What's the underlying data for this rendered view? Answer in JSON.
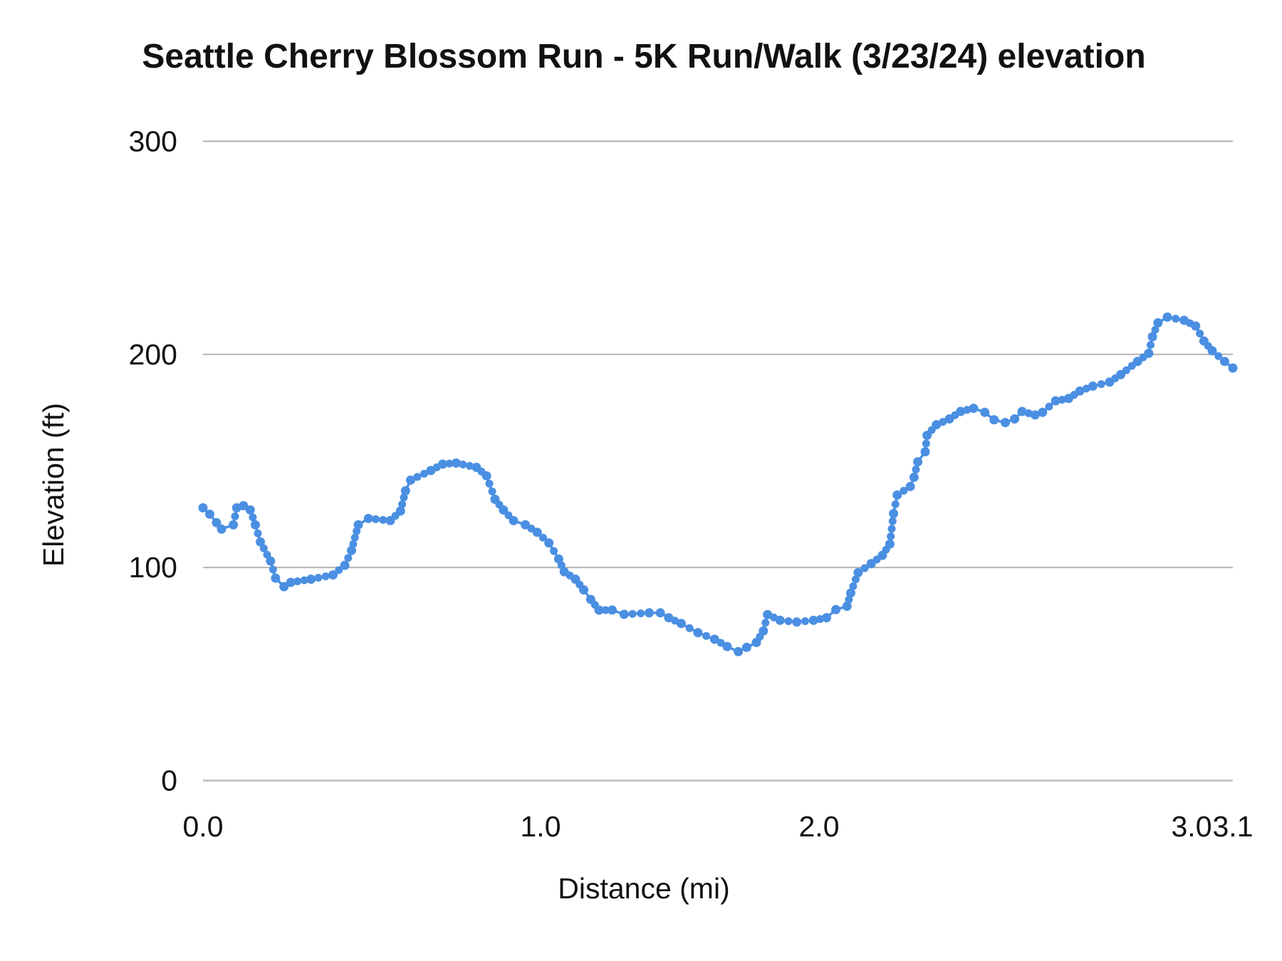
{
  "chart_data": {
    "type": "line",
    "title": "Seattle Cherry Blossom Run - 5K Run/Walk (3/23/24) elevation",
    "xlabel": "Distance (mi)",
    "ylabel": "Elevation (ft)",
    "ylim": [
      0,
      300
    ],
    "y_ticks": [
      "0",
      "100",
      "200",
      "300"
    ],
    "x_ticks": [
      "0.0",
      "1.0",
      "2.0",
      "3.0",
      "3.1"
    ],
    "x_tick_values": [
      0,
      1,
      2,
      3,
      3.1
    ],
    "grid": "horizontal",
    "markers": true,
    "line_color": "#4a8fe2",
    "x": [
      0,
      0.02,
      0.04,
      0.055,
      0.09,
      0.1,
      0.12,
      0.14,
      0.155,
      0.17,
      0.2,
      0.215,
      0.24,
      0.26,
      0.32,
      0.385,
      0.42,
      0.44,
      0.46,
      0.49,
      0.555,
      0.585,
      0.6,
      0.615,
      0.675,
      0.71,
      0.75,
      0.81,
      0.84,
      0.865,
      0.89,
      0.92,
      0.955,
      0.99,
      1.03,
      1.065,
      1.085,
      1.125,
      1.155,
      1.18,
      1.21,
      1.257,
      1.3,
      1.39,
      1.43,
      1.46,
      1.505,
      1.565,
      1.625,
      1.67,
      1.71,
      1.74,
      1.775,
      1.8,
      1.815,
      1.86,
      1.92,
      1.98,
      2.02,
      2.045,
      2.075,
      2.085,
      2.105,
      2.14,
      2.17,
      2.19,
      2.2,
      2.21,
      2.245,
      2.255,
      2.265,
      2.285,
      2.29,
      2.315,
      2.35,
      2.38,
      2.415,
      2.445,
      2.47,
      2.5,
      2.525,
      2.545,
      2.58,
      2.6,
      2.635,
      2.67,
      2.7,
      2.735,
      2.78,
      2.81,
      2.855,
      2.885,
      2.895,
      2.91,
      2.935,
      2.98,
      3.01,
      3.03,
      3.05,
      3.08,
      3.1
    ],
    "y": [
      128,
      125,
      121,
      118,
      120,
      128,
      129,
      127,
      120,
      112,
      103,
      95,
      91,
      93,
      94.5,
      96.5,
      101,
      108,
      120,
      123,
      122,
      126.5,
      136,
      141,
      145.5,
      148.5,
      149,
      147,
      143,
      132,
      127,
      122,
      120,
      116.5,
      111.5,
      104,
      98,
      94.5,
      89.5,
      85,
      80,
      80,
      78,
      78.7,
      78.7,
      76.4,
      73.7,
      69.4,
      66.3,
      62.9,
      60.5,
      62.5,
      64.8,
      70.2,
      77.9,
      75.2,
      74.4,
      75.2,
      76.4,
      80.2,
      81.8,
      88,
      97.6,
      101.8,
      105.7,
      111,
      125.3,
      134,
      138,
      142.3,
      149.6,
      154.3,
      162,
      167,
      169.7,
      173.2,
      174.7,
      172.8,
      169.3,
      168,
      169.7,
      173.2,
      171.6,
      172.8,
      178.2,
      179.3,
      182.8,
      185.1,
      187,
      190.5,
      196.7,
      200.5,
      208.3,
      214.8,
      217.5,
      216,
      213.3,
      206.3,
      201.7,
      196.7,
      193.6
    ]
  }
}
